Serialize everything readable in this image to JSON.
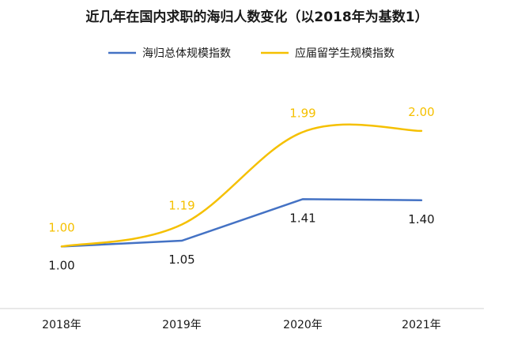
{
  "chart_data": {
    "type": "line",
    "title": "近几年在国内求职的海归人数变化（以2018年为基数1）",
    "categories": [
      "2018年",
      "2019年",
      "2020年",
      "2021年"
    ],
    "series": [
      {
        "name": "海归总体规模指数",
        "color": "#4472C4",
        "values": [
          1.0,
          1.05,
          1.41,
          1.4
        ],
        "labels": [
          "1.00",
          "1.05",
          "1.41",
          "1.40"
        ]
      },
      {
        "name": "应届留学生规模指数",
        "color": "#F5C000",
        "values": [
          1.0,
          1.19,
          1.99,
          2.0
        ],
        "labels": [
          "1.00",
          "1.19",
          "1.99",
          "2.00"
        ]
      }
    ],
    "ylim": [
      0.47,
      2.45
    ],
    "legend": "top",
    "grid": false,
    "axis_color": "#D9D9D9"
  }
}
